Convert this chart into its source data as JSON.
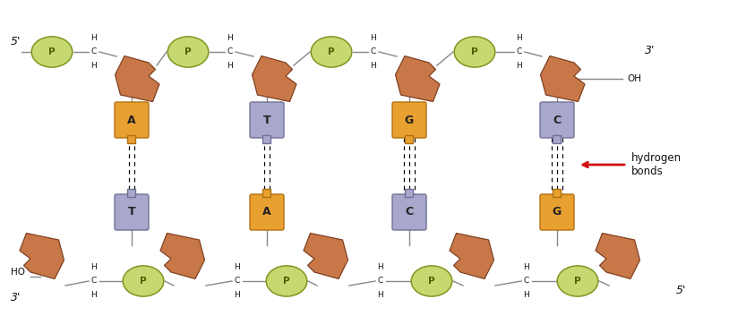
{
  "bg": "#ffffff",
  "p_fill": "#c8d870",
  "p_edge": "#7a9820",
  "sugar_fill": "#c87848",
  "sugar_edge": "#804020",
  "sugar_fill2": "#d8a878",
  "base_A_fill": "#e8a030",
  "base_A_edge": "#b07010",
  "base_T_fill": "#a8a8cc",
  "base_T_edge": "#707098",
  "base_G_fill": "#e8a030",
  "base_G_edge": "#b07010",
  "base_C_fill": "#a8a8cc",
  "base_C_edge": "#707098",
  "line_color": "#888888",
  "text_color": "#111111",
  "arrow_color": "#cc1111",
  "base_pairs": [
    {
      "top": "A",
      "bot": "T",
      "fill_top": "#e8a030",
      "edge_top": "#b07010",
      "fill_bot": "#a8a8cc",
      "edge_bot": "#707098",
      "n_hbonds": 2
    },
    {
      "top": "T",
      "bot": "A",
      "fill_top": "#a8a8cc",
      "edge_top": "#707098",
      "fill_bot": "#e8a030",
      "edge_bot": "#b07010",
      "n_hbonds": 2
    },
    {
      "top": "G",
      "bot": "C",
      "fill_top": "#e8a030",
      "edge_top": "#b07010",
      "fill_bot": "#a8a8cc",
      "edge_bot": "#707098",
      "n_hbonds": 3
    },
    {
      "top": "C",
      "bot": "G",
      "fill_top": "#a8a8cc",
      "edge_top": "#707098",
      "fill_bot": "#e8a030",
      "edge_bot": "#b07010",
      "n_hbonds": 3
    }
  ],
  "figsize": [
    8.14,
    3.72
  ],
  "dpi": 100
}
